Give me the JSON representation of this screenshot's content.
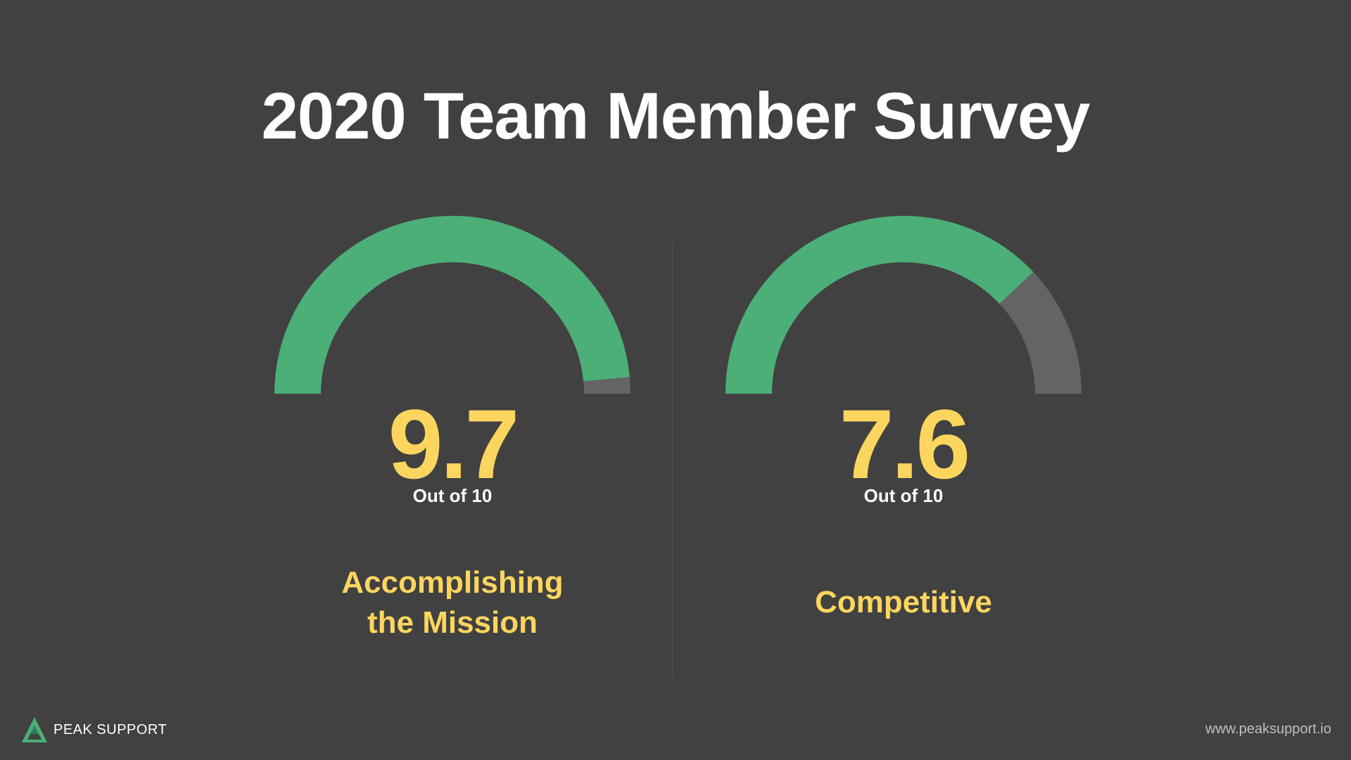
{
  "title": "2020 Team Member Survey",
  "chart_data": [
    {
      "type": "gauge",
      "value": 9.7,
      "max": 10,
      "value_label": "9.7",
      "unit_label": "Out of 10",
      "label": "Accomplishing the Mission",
      "colors": {
        "fill": "#4caf78",
        "track": "#646464",
        "value_text": "#fcd55f",
        "label_text": "#fcd55f"
      }
    },
    {
      "type": "gauge",
      "value": 7.6,
      "max": 10,
      "value_label": "7.6",
      "unit_label": "Out of 10",
      "label": "Competitive",
      "colors": {
        "fill": "#4caf78",
        "track": "#646464",
        "value_text": "#fcd55f",
        "label_text": "#fcd55f"
      }
    }
  ],
  "footer": {
    "brand": "PEAK SUPPORT",
    "website": "www.peaksupport.io",
    "logo_icon": "peak-mountain-icon",
    "logo_colors": [
      "#4caf78",
      "#2e7d57"
    ]
  },
  "colors": {
    "background": "#414141",
    "title": "#ffffff"
  }
}
